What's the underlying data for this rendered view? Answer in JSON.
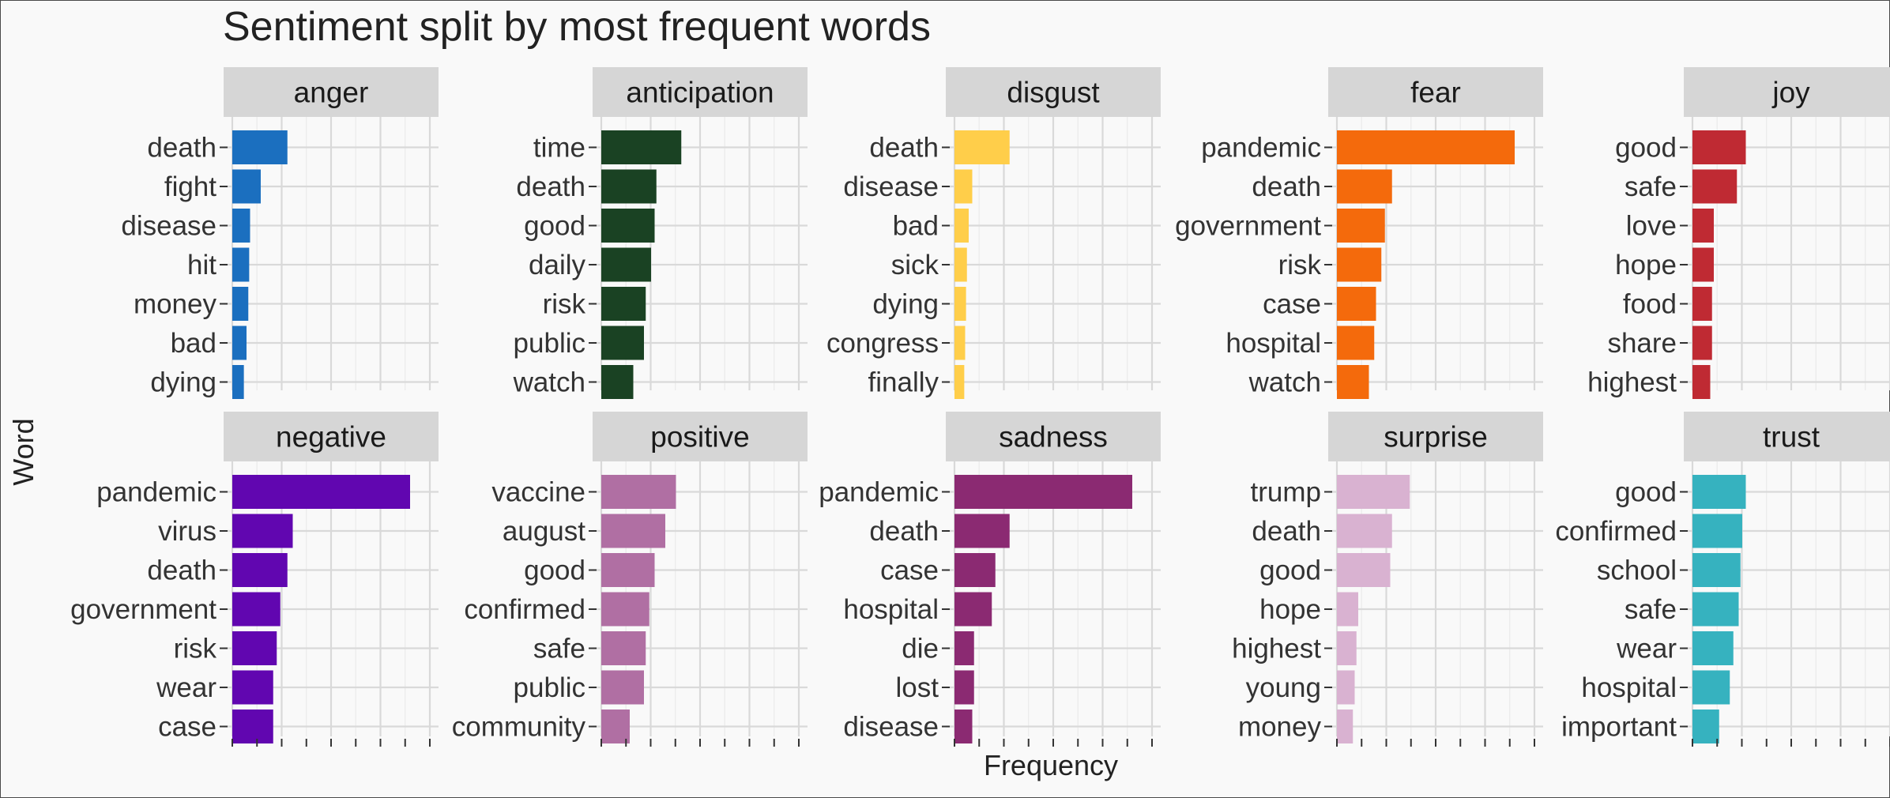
{
  "chart_data": {
    "type": "bar",
    "title": "Sentiment split by most frequent words",
    "xlabel": "Frequency",
    "ylabel": "Word",
    "orientation": "horizontal",
    "facet_layout": "5 columns x 2 rows",
    "grid": true,
    "legend": "none",
    "xlim": [
      0,
      1
    ],
    "axis_ticks": 9,
    "x_tick_labels": "none",
    "panels": [
      {
        "name": "anger",
        "color": "#1B6FBF",
        "categories": [
          "death",
          "fight",
          "disease",
          "hit",
          "money",
          "bad",
          "dying"
        ],
        "values": [
          0.31,
          0.16,
          0.1,
          0.095,
          0.09,
          0.08,
          0.065
        ]
      },
      {
        "name": "anticipation",
        "color": "#1A4223",
        "categories": [
          "time",
          "death",
          "good",
          "daily",
          "risk",
          "public",
          "watch"
        ],
        "values": [
          0.45,
          0.31,
          0.3,
          0.28,
          0.25,
          0.24,
          0.18
        ]
      },
      {
        "name": "disgust",
        "color": "#FFCE4A",
        "categories": [
          "death",
          "disease",
          "bad",
          "sick",
          "dying",
          "congress",
          "finally"
        ],
        "values": [
          0.31,
          0.1,
          0.08,
          0.07,
          0.065,
          0.06,
          0.055
        ]
      },
      {
        "name": "fear",
        "color": "#F46A0C",
        "categories": [
          "pandemic",
          "death",
          "government",
          "risk",
          "case",
          "hospital",
          "watch"
        ],
        "values": [
          1.0,
          0.31,
          0.27,
          0.25,
          0.22,
          0.21,
          0.18
        ]
      },
      {
        "name": "joy",
        "color": "#BF2A33",
        "categories": [
          "good",
          "safe",
          "love",
          "hope",
          "food",
          "share",
          "highest"
        ],
        "values": [
          0.3,
          0.25,
          0.12,
          0.12,
          0.11,
          0.11,
          0.1
        ]
      },
      {
        "name": "negative",
        "color": "#6106B0",
        "categories": [
          "pandemic",
          "virus",
          "death",
          "government",
          "risk",
          "wear",
          "case"
        ],
        "values": [
          1.0,
          0.34,
          0.31,
          0.27,
          0.25,
          0.23,
          0.23
        ]
      },
      {
        "name": "positive",
        "color": "#B06FA3",
        "categories": [
          "vaccine",
          "august",
          "good",
          "confirmed",
          "safe",
          "public",
          "community"
        ],
        "values": [
          0.42,
          0.36,
          0.3,
          0.27,
          0.25,
          0.24,
          0.16
        ]
      },
      {
        "name": "sadness",
        "color": "#8B2A72",
        "categories": [
          "pandemic",
          "death",
          "case",
          "hospital",
          "die",
          "lost",
          "disease"
        ],
        "values": [
          1.0,
          0.31,
          0.23,
          0.21,
          0.11,
          0.11,
          0.1
        ]
      },
      {
        "name": "surprise",
        "color": "#D9B2D1",
        "categories": [
          "trump",
          "death",
          "good",
          "hope",
          "highest",
          "young",
          "money"
        ],
        "values": [
          0.41,
          0.31,
          0.3,
          0.12,
          0.11,
          0.1,
          0.09
        ]
      },
      {
        "name": "trust",
        "color": "#36B2BF",
        "categories": [
          "good",
          "confirmed",
          "school",
          "safe",
          "wear",
          "hospital",
          "important"
        ],
        "values": [
          0.3,
          0.28,
          0.27,
          0.26,
          0.23,
          0.21,
          0.15
        ]
      }
    ]
  }
}
